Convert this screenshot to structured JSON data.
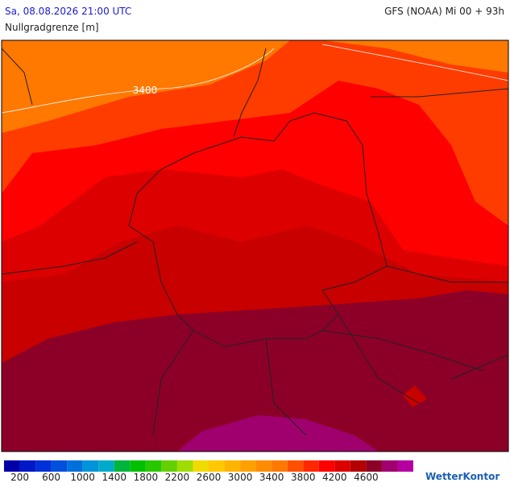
{
  "header": {
    "datetime": "Sa, 08.08.2026 21:00 UTC",
    "model": "GFS (NOAA) Mi 00 + 93h",
    "parameter": "Nullgradgrenze [m]"
  },
  "map": {
    "contour_label": "3400"
  },
  "colorbar": {
    "colors": [
      "#0000a8",
      "#0018c8",
      "#0030d8",
      "#0050dc",
      "#0070dc",
      "#0094d8",
      "#00aac8",
      "#00b43c",
      "#00c000",
      "#28c800",
      "#64d000",
      "#a0dc00",
      "#f0dc00",
      "#ffc800",
      "#ffb400",
      "#ffa000",
      "#ff8c00",
      "#ff7800",
      "#ff5000",
      "#ff2800",
      "#ff0000",
      "#dc0000",
      "#b40000",
      "#8c0028",
      "#a0006e",
      "#b400a0"
    ],
    "labels": [
      "200",
      "600",
      "1000",
      "1400",
      "1800",
      "2200",
      "2600",
      "3000",
      "3400",
      "3800",
      "4200",
      "4600"
    ]
  },
  "logo": "WetterKontor"
}
